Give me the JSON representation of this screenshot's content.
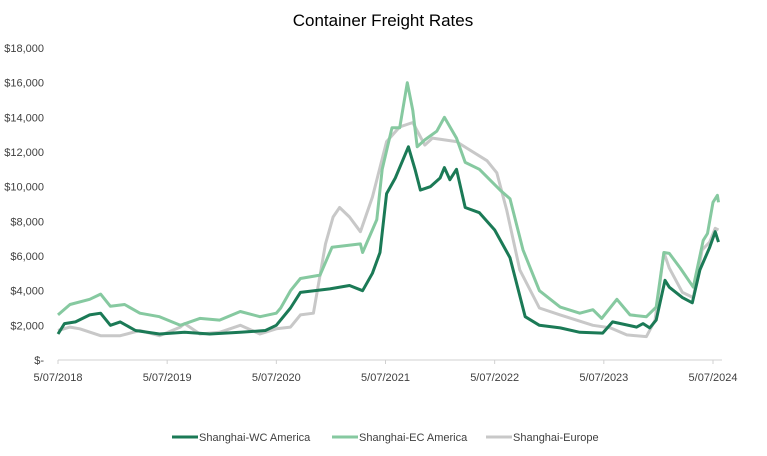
{
  "chart_data": {
    "type": "line",
    "title": "Container Freight Rates",
    "xlabel": "",
    "ylabel": "",
    "xlim": [
      2018.51,
      2024.6
    ],
    "ylim": [
      0,
      18000
    ],
    "grid": false,
    "legend_position": "bottom",
    "x_ticks": [
      {
        "value": 2018.51,
        "label": "5/07/2018"
      },
      {
        "value": 2019.51,
        "label": "5/07/2019"
      },
      {
        "value": 2020.51,
        "label": "5/07/2020"
      },
      {
        "value": 2021.51,
        "label": "5/07/2021"
      },
      {
        "value": 2022.51,
        "label": "5/07/2022"
      },
      {
        "value": 2023.51,
        "label": "5/07/2023"
      },
      {
        "value": 2024.51,
        "label": "5/07/2024"
      }
    ],
    "y_ticks": [
      {
        "value": 0,
        "label": "$-"
      },
      {
        "value": 2000,
        "label": "$2,000"
      },
      {
        "value": 4000,
        "label": "$4,000"
      },
      {
        "value": 6000,
        "label": "$6,000"
      },
      {
        "value": 8000,
        "label": "$8,000"
      },
      {
        "value": 10000,
        "label": "$10,000"
      },
      {
        "value": 12000,
        "label": "$12,000"
      },
      {
        "value": 14000,
        "label": "$14,000"
      },
      {
        "value": 16000,
        "label": "$16,000"
      },
      {
        "value": 18000,
        "label": "$18,000"
      }
    ],
    "series": [
      {
        "name": "Shanghai-WC America",
        "color": "#1b7a56",
        "width": 3,
        "points": [
          [
            2018.51,
            1500
          ],
          [
            2018.57,
            2100
          ],
          [
            2018.67,
            2200
          ],
          [
            2018.8,
            2600
          ],
          [
            2018.9,
            2700
          ],
          [
            2018.99,
            2000
          ],
          [
            2019.08,
            2200
          ],
          [
            2019.22,
            1700
          ],
          [
            2019.44,
            1500
          ],
          [
            2019.67,
            1600
          ],
          [
            2019.9,
            1500
          ],
          [
            2020.18,
            1600
          ],
          [
            2020.41,
            1700
          ],
          [
            2020.51,
            2000
          ],
          [
            2020.64,
            3000
          ],
          [
            2020.73,
            3900
          ],
          [
            2021.0,
            4100
          ],
          [
            2021.18,
            4300
          ],
          [
            2021.3,
            4000
          ],
          [
            2021.39,
            5000
          ],
          [
            2021.46,
            6200
          ],
          [
            2021.52,
            9600
          ],
          [
            2021.6,
            10500
          ],
          [
            2021.72,
            12300
          ],
          [
            2021.78,
            11000
          ],
          [
            2021.83,
            9800
          ],
          [
            2021.92,
            10000
          ],
          [
            2022.01,
            10500
          ],
          [
            2022.05,
            11100
          ],
          [
            2022.1,
            10400
          ],
          [
            2022.16,
            11000
          ],
          [
            2022.24,
            8800
          ],
          [
            2022.37,
            8500
          ],
          [
            2022.51,
            7500
          ],
          [
            2022.65,
            5900
          ],
          [
            2022.79,
            2500
          ],
          [
            2022.92,
            2000
          ],
          [
            2023.11,
            1850
          ],
          [
            2023.29,
            1600
          ],
          [
            2023.5,
            1550
          ],
          [
            2023.59,
            2200
          ],
          [
            2023.81,
            1900
          ],
          [
            2023.87,
            2100
          ],
          [
            2023.93,
            1850
          ],
          [
            2023.99,
            2300
          ],
          [
            2024.07,
            4600
          ],
          [
            2024.11,
            4200
          ],
          [
            2024.23,
            3600
          ],
          [
            2024.32,
            3300
          ],
          [
            2024.39,
            5200
          ],
          [
            2024.48,
            6500
          ],
          [
            2024.53,
            7400
          ],
          [
            2024.56,
            6800
          ]
        ]
      },
      {
        "name": "Shanghai-EC America",
        "color": "#86c9a0",
        "width": 3,
        "points": [
          [
            2018.51,
            2600
          ],
          [
            2018.62,
            3200
          ],
          [
            2018.8,
            3500
          ],
          [
            2018.9,
            3800
          ],
          [
            2018.99,
            3100
          ],
          [
            2019.12,
            3200
          ],
          [
            2019.26,
            2700
          ],
          [
            2019.44,
            2500
          ],
          [
            2019.63,
            2000
          ],
          [
            2019.81,
            2400
          ],
          [
            2019.99,
            2300
          ],
          [
            2020.18,
            2800
          ],
          [
            2020.36,
            2500
          ],
          [
            2020.51,
            2700
          ],
          [
            2020.55,
            3000
          ],
          [
            2020.64,
            4000
          ],
          [
            2020.73,
            4700
          ],
          [
            2020.91,
            4900
          ],
          [
            2021.02,
            6500
          ],
          [
            2021.28,
            6700
          ],
          [
            2021.3,
            6200
          ],
          [
            2021.43,
            8100
          ],
          [
            2021.48,
            11000
          ],
          [
            2021.57,
            13400
          ],
          [
            2021.64,
            13400
          ],
          [
            2021.71,
            16000
          ],
          [
            2021.76,
            14400
          ],
          [
            2021.8,
            12300
          ],
          [
            2021.87,
            12700
          ],
          [
            2021.98,
            13200
          ],
          [
            2022.05,
            14000
          ],
          [
            2022.16,
            12800
          ],
          [
            2022.24,
            11400
          ],
          [
            2022.37,
            11000
          ],
          [
            2022.56,
            9800
          ],
          [
            2022.65,
            9300
          ],
          [
            2022.77,
            6350
          ],
          [
            2022.92,
            4000
          ],
          [
            2023.11,
            3050
          ],
          [
            2023.29,
            2700
          ],
          [
            2023.41,
            2900
          ],
          [
            2023.49,
            2400
          ],
          [
            2023.63,
            3500
          ],
          [
            2023.75,
            2600
          ],
          [
            2023.9,
            2500
          ],
          [
            2023.99,
            3050
          ],
          [
            2024.06,
            6200
          ],
          [
            2024.11,
            6150
          ],
          [
            2024.21,
            5300
          ],
          [
            2024.33,
            4200
          ],
          [
            2024.42,
            6900
          ],
          [
            2024.46,
            7300
          ],
          [
            2024.51,
            9100
          ],
          [
            2024.55,
            9500
          ],
          [
            2024.56,
            9100
          ]
        ]
      },
      {
        "name": "Shanghai-Europe",
        "color": "#c8c8c8",
        "width": 3,
        "points": [
          [
            2018.51,
            1700
          ],
          [
            2018.62,
            1900
          ],
          [
            2018.71,
            1800
          ],
          [
            2018.9,
            1400
          ],
          [
            2019.08,
            1400
          ],
          [
            2019.26,
            1700
          ],
          [
            2019.44,
            1400
          ],
          [
            2019.63,
            1900
          ],
          [
            2019.67,
            2100
          ],
          [
            2019.81,
            1500
          ],
          [
            2019.99,
            1600
          ],
          [
            2020.18,
            2000
          ],
          [
            2020.36,
            1500
          ],
          [
            2020.51,
            1800
          ],
          [
            2020.64,
            1900
          ],
          [
            2020.73,
            2600
          ],
          [
            2020.85,
            2700
          ],
          [
            2020.96,
            6700
          ],
          [
            2021.03,
            8250
          ],
          [
            2021.09,
            8800
          ],
          [
            2021.18,
            8250
          ],
          [
            2021.28,
            7400
          ],
          [
            2021.39,
            9400
          ],
          [
            2021.52,
            12600
          ],
          [
            2021.64,
            13450
          ],
          [
            2021.76,
            13700
          ],
          [
            2021.87,
            12400
          ],
          [
            2021.94,
            12800
          ],
          [
            2022.16,
            12600
          ],
          [
            2022.26,
            12200
          ],
          [
            2022.44,
            11500
          ],
          [
            2022.53,
            10800
          ],
          [
            2022.62,
            8650
          ],
          [
            2022.74,
            5200
          ],
          [
            2022.92,
            3000
          ],
          [
            2023.11,
            2600
          ],
          [
            2023.41,
            2000
          ],
          [
            2023.57,
            1850
          ],
          [
            2023.72,
            1450
          ],
          [
            2023.9,
            1350
          ],
          [
            2023.98,
            2300
          ],
          [
            2024.06,
            6200
          ],
          [
            2024.11,
            5300
          ],
          [
            2024.23,
            3900
          ],
          [
            2024.33,
            3600
          ],
          [
            2024.41,
            6350
          ],
          [
            2024.48,
            6800
          ],
          [
            2024.53,
            7600
          ],
          [
            2024.56,
            7500
          ]
        ]
      }
    ]
  }
}
